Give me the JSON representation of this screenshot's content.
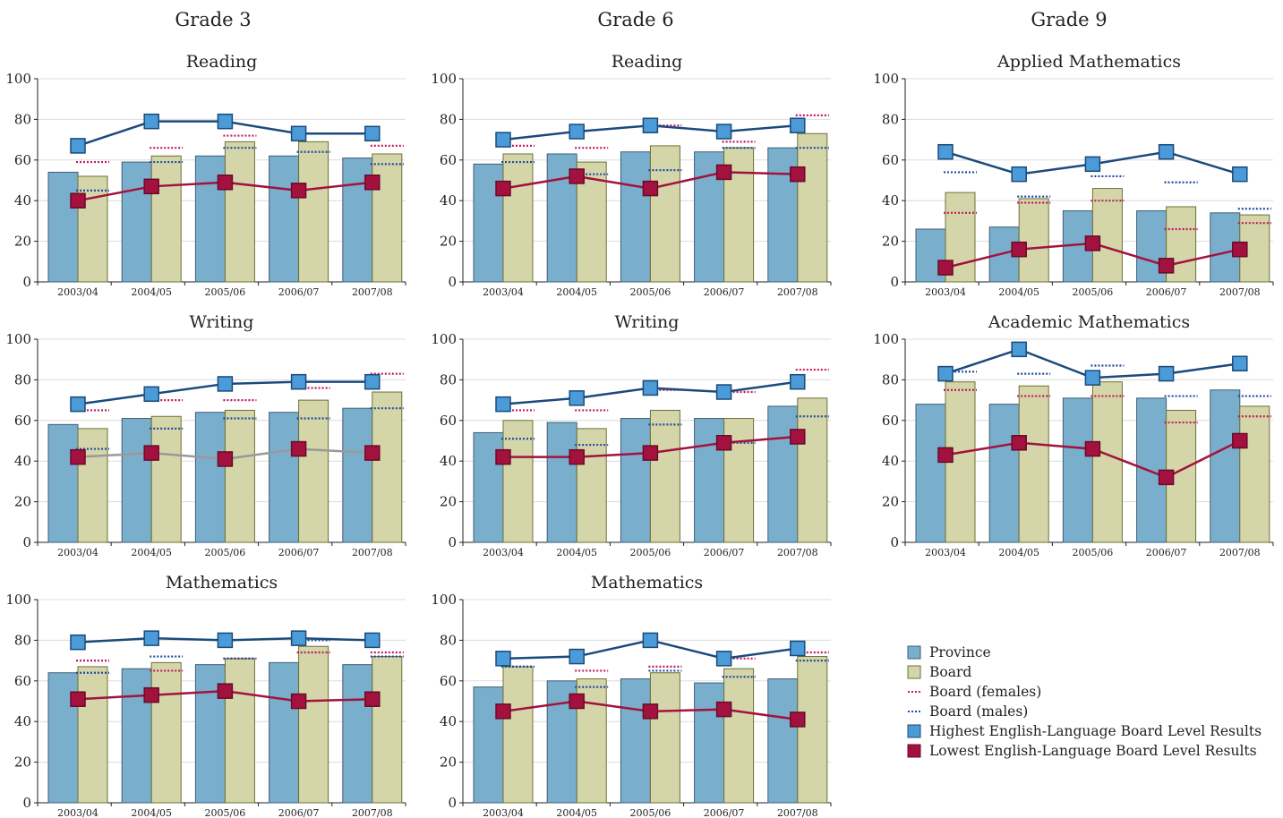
{
  "grade_headers": [
    "Grade 3",
    "Grade 6",
    "Grade 9"
  ],
  "legend": {
    "province": "Province",
    "board": "Board",
    "board_females": "Board (females)",
    "board_males": "Board (males)",
    "highest": "Highest English-Language Board Level Results",
    "lowest": "Lowest English-Language Board Level Results"
  },
  "colors": {
    "province": "#7aaecd",
    "board": "#d4d6a9",
    "females": "#c2185b",
    "males": "#1f4aa0",
    "highest_line": "#1b4a7c",
    "highest_marker": "#4a9bd8",
    "lowest": "#a3123f",
    "lowest_gray": "#999999"
  },
  "chart_data": [
    {
      "type": "bar",
      "grade": "Grade 3",
      "title": "Reading",
      "ylim": [
        0,
        100
      ],
      "yticks": [
        0,
        20,
        40,
        60,
        80,
        100
      ],
      "categories": [
        "2003/04",
        "2004/05",
        "2005/06",
        "2006/07",
        "2007/08"
      ],
      "series": [
        {
          "name": "Province",
          "values": [
            54,
            59,
            62,
            62,
            61
          ]
        },
        {
          "name": "Board",
          "values": [
            52,
            62,
            69,
            69,
            63
          ]
        },
        {
          "name": "Board (females)",
          "values": [
            59,
            66,
            72,
            73,
            67
          ]
        },
        {
          "name": "Board (males)",
          "values": [
            45,
            59,
            66,
            64,
            58
          ]
        },
        {
          "name": "Highest English-Language Board Level Results",
          "values": [
            67,
            79,
            79,
            73,
            73
          ]
        },
        {
          "name": "Lowest English-Language Board Level Results",
          "values": [
            40,
            47,
            49,
            45,
            49
          ]
        }
      ]
    },
    {
      "type": "bar",
      "grade": "Grade 6",
      "title": "Reading",
      "ylim": [
        0,
        100
      ],
      "yticks": [
        0,
        20,
        40,
        60,
        80,
        100
      ],
      "categories": [
        "2003/04",
        "2004/05",
        "2005/06",
        "2006/07",
        "2007/08"
      ],
      "series": [
        {
          "name": "Province",
          "values": [
            58,
            63,
            64,
            64,
            66
          ]
        },
        {
          "name": "Board",
          "values": [
            63,
            59,
            67,
            66,
            73
          ]
        },
        {
          "name": "Board (females)",
          "values": [
            67,
            66,
            77,
            69,
            82
          ]
        },
        {
          "name": "Board (males)",
          "values": [
            59,
            53,
            55,
            66,
            66
          ]
        },
        {
          "name": "Highest English-Language Board Level Results",
          "values": [
            70,
            74,
            77,
            74,
            77
          ]
        },
        {
          "name": "Lowest English-Language Board Level Results",
          "values": [
            46,
            52,
            46,
            54,
            53
          ]
        }
      ]
    },
    {
      "type": "bar",
      "grade": "Grade 9",
      "title": "Applied Mathematics",
      "ylim": [
        0,
        100
      ],
      "yticks": [
        0,
        20,
        40,
        60,
        80,
        100
      ],
      "categories": [
        "2003/04",
        "2004/05",
        "2005/06",
        "2006/07",
        "2007/08"
      ],
      "series": [
        {
          "name": "Province",
          "values": [
            26,
            27,
            35,
            35,
            34
          ]
        },
        {
          "name": "Board",
          "values": [
            44,
            41,
            46,
            37,
            33
          ]
        },
        {
          "name": "Board (females)",
          "values": [
            34,
            39,
            40,
            26,
            29
          ]
        },
        {
          "name": "Board (males)",
          "values": [
            54,
            42,
            52,
            49,
            36
          ]
        },
        {
          "name": "Highest English-Language Board Level Results",
          "values": [
            64,
            53,
            58,
            64,
            53
          ]
        },
        {
          "name": "Lowest English-Language Board Level Results",
          "values": [
            7,
            16,
            19,
            8,
            16
          ]
        }
      ]
    },
    {
      "type": "bar",
      "grade": "Grade 3",
      "title": "Writing",
      "ylim": [
        0,
        100
      ],
      "yticks": [
        0,
        20,
        40,
        60,
        80,
        100
      ],
      "categories": [
        "2003/04",
        "2004/05",
        "2005/06",
        "2006/07",
        "2007/08"
      ],
      "series": [
        {
          "name": "Province",
          "values": [
            58,
            61,
            64,
            64,
            66
          ]
        },
        {
          "name": "Board",
          "values": [
            56,
            62,
            65,
            70,
            74
          ]
        },
        {
          "name": "Board (females)",
          "values": [
            65,
            70,
            70,
            76,
            83
          ]
        },
        {
          "name": "Board (males)",
          "values": [
            46,
            56,
            61,
            61,
            66
          ]
        },
        {
          "name": "Highest English-Language Board Level Results",
          "values": [
            68,
            73,
            78,
            79,
            79
          ]
        },
        {
          "name": "Lowest English-Language Board Level Results",
          "values": [
            42,
            44,
            41,
            46,
            44
          ]
        }
      ]
    },
    {
      "type": "bar",
      "grade": "Grade 6",
      "title": "Writing",
      "ylim": [
        0,
        100
      ],
      "yticks": [
        0,
        20,
        40,
        60,
        80,
        100
      ],
      "categories": [
        "2003/04",
        "2004/05",
        "2005/06",
        "2006/07",
        "2007/08"
      ],
      "series": [
        {
          "name": "Province",
          "values": [
            54,
            59,
            61,
            61,
            67
          ]
        },
        {
          "name": "Board",
          "values": [
            60,
            56,
            65,
            61,
            71
          ]
        },
        {
          "name": "Board (females)",
          "values": [
            65,
            65,
            75,
            74,
            85
          ]
        },
        {
          "name": "Board (males)",
          "values": [
            51,
            48,
            58,
            49,
            62
          ]
        },
        {
          "name": "Highest English-Language Board Level Results",
          "values": [
            68,
            71,
            76,
            74,
            79
          ]
        },
        {
          "name": "Lowest English-Language Board Level Results",
          "values": [
            42,
            42,
            44,
            49,
            52
          ]
        }
      ]
    },
    {
      "type": "bar",
      "grade": "Grade 9",
      "title": "Academic Mathematics",
      "ylim": [
        0,
        100
      ],
      "yticks": [
        0,
        20,
        40,
        60,
        80,
        100
      ],
      "categories": [
        "2003/04",
        "2004/05",
        "2005/06",
        "2006/07",
        "2007/08"
      ],
      "series": [
        {
          "name": "Province",
          "values": [
            68,
            68,
            71,
            71,
            75
          ]
        },
        {
          "name": "Board",
          "values": [
            79,
            77,
            79,
            65,
            67
          ]
        },
        {
          "name": "Board (females)",
          "values": [
            75,
            72,
            72,
            59,
            62
          ]
        },
        {
          "name": "Board (males)",
          "values": [
            84,
            83,
            87,
            72,
            72
          ]
        },
        {
          "name": "Highest English-Language Board Level Results",
          "values": [
            83,
            95,
            81,
            83,
            88
          ]
        },
        {
          "name": "Lowest English-Language Board Level Results",
          "values": [
            43,
            49,
            46,
            32,
            50
          ]
        }
      ]
    },
    {
      "type": "bar",
      "grade": "Grade 3",
      "title": "Mathematics",
      "ylim": [
        0,
        100
      ],
      "yticks": [
        0,
        20,
        40,
        60,
        80,
        100
      ],
      "categories": [
        "2003/04",
        "2004/05",
        "2005/06",
        "2006/07",
        "2007/08"
      ],
      "series": [
        {
          "name": "Province",
          "values": [
            64,
            66,
            68,
            69,
            68
          ]
        },
        {
          "name": "Board",
          "values": [
            67,
            69,
            71,
            77,
            72
          ]
        },
        {
          "name": "Board (females)",
          "values": [
            70,
            65,
            71,
            74,
            74
          ]
        },
        {
          "name": "Board (males)",
          "values": [
            64,
            72,
            71,
            80,
            72
          ]
        },
        {
          "name": "Highest English-Language Board Level Results",
          "values": [
            79,
            81,
            80,
            81,
            80
          ]
        },
        {
          "name": "Lowest English-Language Board Level Results",
          "values": [
            51,
            53,
            55,
            50,
            51
          ]
        }
      ]
    },
    {
      "type": "bar",
      "grade": "Grade 6",
      "title": "Mathematics",
      "ylim": [
        0,
        100
      ],
      "yticks": [
        0,
        20,
        40,
        60,
        80,
        100
      ],
      "categories": [
        "2003/04",
        "2004/05",
        "2005/06",
        "2006/07",
        "2007/08"
      ],
      "series": [
        {
          "name": "Province",
          "values": [
            57,
            60,
            61,
            59,
            61
          ]
        },
        {
          "name": "Board",
          "values": [
            67,
            61,
            64,
            66,
            72
          ]
        },
        {
          "name": "Board (females)",
          "values": [
            67,
            65,
            67,
            71,
            74
          ]
        },
        {
          "name": "Board (males)",
          "values": [
            67,
            57,
            65,
            62,
            70
          ]
        },
        {
          "name": "Highest English-Language Board Level Results",
          "values": [
            71,
            72,
            80,
            71,
            76
          ]
        },
        {
          "name": "Lowest English-Language Board Level Results",
          "values": [
            45,
            50,
            45,
            46,
            41
          ]
        }
      ]
    }
  ]
}
